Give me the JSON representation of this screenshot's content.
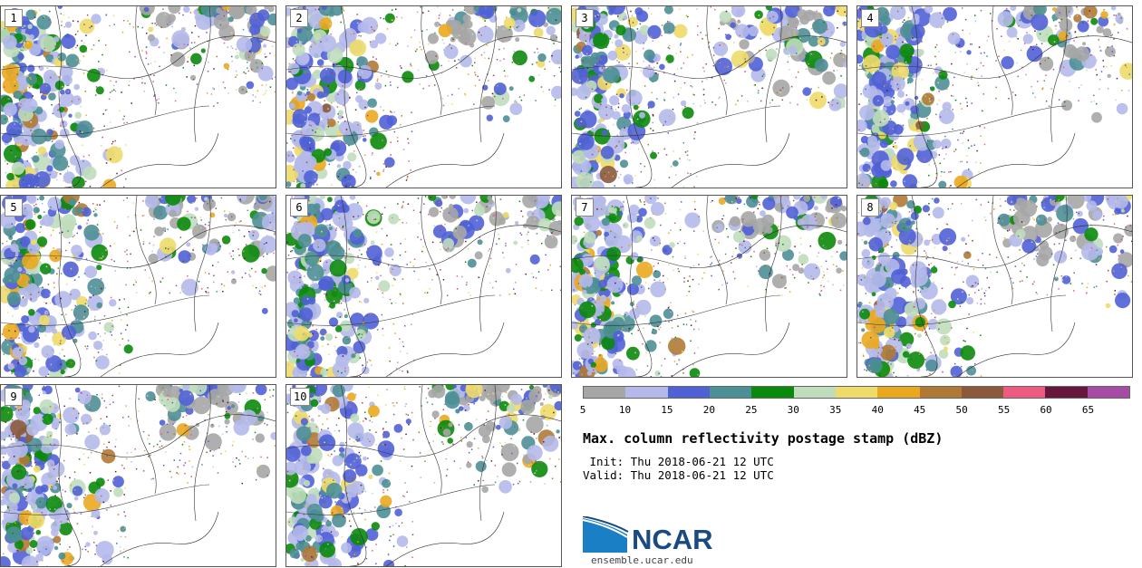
{
  "panels": [
    {
      "label": "1"
    },
    {
      "label": "2"
    },
    {
      "label": "3"
    },
    {
      "label": "4"
    },
    {
      "label": "5"
    },
    {
      "label": "6"
    },
    {
      "label": "7"
    },
    {
      "label": "8"
    },
    {
      "label": "9"
    },
    {
      "label": "10"
    }
  ],
  "colorbar": {
    "colors": [
      "#a6a6a6",
      "#b4b9ea",
      "#5061d6",
      "#4c8f95",
      "#0a8a0a",
      "#bfddbb",
      "#eedc6a",
      "#eaa81f",
      "#b07a35",
      "#8b5a3c",
      "#ee5a82",
      "#66173b",
      "#a64ca6"
    ],
    "ticks": [
      "5",
      "10",
      "15",
      "20",
      "25",
      "30",
      "35",
      "40",
      "45",
      "50",
      "55",
      "60",
      "65"
    ],
    "range": [
      5,
      70
    ]
  },
  "title": "Max. column reflectivity postage stamp (dBZ)",
  "init": " Init: Thu 2018-06-21 12 UTC",
  "valid": "Valid: Thu 2018-06-21 12 UTC",
  "logo": {
    "text": "NCAR",
    "url_text": "ensemble.ucar.edu"
  }
}
